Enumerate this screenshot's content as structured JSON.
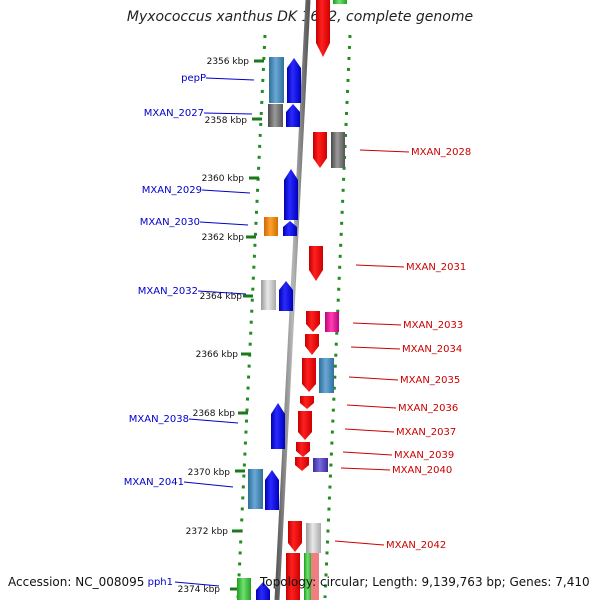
{
  "title": "Myxococcus xanthus DK 1622, complete genome",
  "footer": {
    "accession": "Accession: NC_008095",
    "topology": "Topology: circular; Length: 9,139,763 bp; Genes: 7,410"
  },
  "colors": {
    "forward_gene": "#0000ff",
    "reverse_gene": "#ff0000",
    "forward_label": "#0000cc",
    "reverse_label": "#cc0000",
    "dna_axis": "#888888",
    "tick_marks": "#228b22"
  },
  "ruler": [
    "2356 kbp",
    "2358 kbp",
    "2360 kbp",
    "2362 kbp",
    "2364 kbp",
    "2366 kbp",
    "2368 kbp",
    "2370 kbp",
    "2372 kbp",
    "2374 kbp"
  ],
  "genes_left": [
    "pepP",
    "MXAN_2027",
    "MXAN_2029",
    "MXAN_2030",
    "MXAN_2032",
    "MXAN_2038",
    "MXAN_2041",
    "pph1"
  ],
  "genes_right": [
    "MXAN_2028",
    "MXAN_2031",
    "MXAN_2033",
    "MXAN_2034",
    "MXAN_2035",
    "MXAN_2036",
    "MXAN_2037",
    "MXAN_2039",
    "MXAN_2040",
    "MXAN_2042"
  ]
}
